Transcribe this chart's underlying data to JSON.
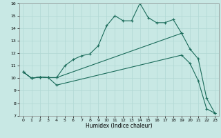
{
  "xlabel": "Humidex (Indice chaleur)",
  "xlim": [
    -0.5,
    23.5
  ],
  "ylim": [
    7,
    16
  ],
  "xticks": [
    0,
    1,
    2,
    3,
    4,
    5,
    6,
    7,
    8,
    9,
    10,
    11,
    12,
    13,
    14,
    15,
    16,
    17,
    18,
    19,
    20,
    21,
    22,
    23
  ],
  "yticks": [
    7,
    8,
    9,
    10,
    11,
    12,
    13,
    14,
    15,
    16
  ],
  "bg_color": "#c8e8e4",
  "grid_color": "#b0d8d4",
  "line_color": "#1a6b5a",
  "line1_x": [
    0,
    1,
    2,
    3,
    4,
    5,
    6,
    7,
    8,
    9,
    10,
    11,
    12,
    13,
    14,
    15,
    16,
    17,
    18,
    19
  ],
  "line1_y": [
    10.5,
    10.0,
    10.1,
    10.05,
    10.05,
    11.0,
    11.5,
    11.8,
    11.95,
    12.6,
    14.2,
    15.0,
    14.6,
    14.6,
    16.0,
    14.85,
    14.45,
    14.45,
    14.7,
    13.6
  ],
  "line2_x": [
    0,
    1,
    2,
    3,
    4,
    19,
    20,
    21,
    22,
    23
  ],
  "line2_y": [
    10.5,
    10.0,
    10.1,
    10.05,
    10.05,
    13.6,
    12.35,
    11.55,
    8.4,
    7.2
  ],
  "line3_x": [
    0,
    1,
    2,
    3,
    4,
    19,
    20,
    21,
    22,
    23
  ],
  "line3_y": [
    10.5,
    10.0,
    10.1,
    10.05,
    9.45,
    11.85,
    11.2,
    9.8,
    7.55,
    7.2
  ]
}
